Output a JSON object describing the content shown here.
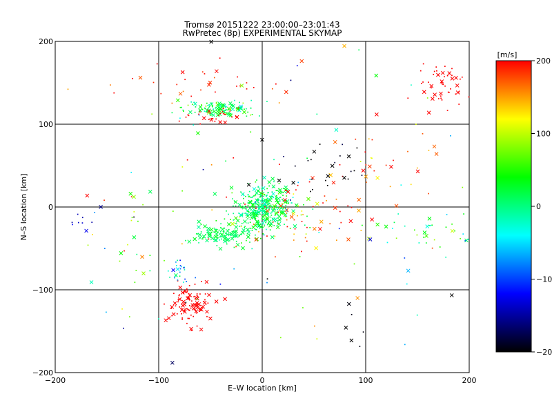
{
  "chart_data": {
    "type": "scatter",
    "title_line1": "Tromsø 20151222 23:00:00–23:01:43",
    "title_line2": "RwPretec (8p) EXPERIMENTAL SKYMAP",
    "xlabel": "E–W location [km]",
    "ylabel": "N–S location [km]",
    "xlim": [
      -200,
      200
    ],
    "ylim": [
      -200,
      200
    ],
    "xticks": [
      -200,
      -100,
      0,
      100,
      200
    ],
    "yticks": [
      -200,
      -100,
      0,
      100,
      200
    ],
    "grid": true,
    "colorbar": {
      "label": "[m/s]",
      "range": [
        -200,
        200
      ],
      "ticks": [
        200,
        100,
        0,
        -100,
        -200
      ],
      "colors": [
        "#ff0000",
        "#ffff00",
        "#00ff00",
        "#00ffff",
        "#0000ff",
        "#000000"
      ]
    },
    "clusters": [
      {
        "center": [
          3,
          2
        ],
        "spread": [
          14,
          12
        ],
        "count": 320,
        "velocity": [
          10,
          25
        ]
      },
      {
        "center": [
          -40,
          -33
        ],
        "spread": [
          16,
          6
        ],
        "count": 110,
        "velocity": [
          15,
          10
        ]
      },
      {
        "center": [
          -8,
          -18
        ],
        "spread": [
          12,
          10
        ],
        "count": 80,
        "velocity": [
          20,
          20
        ]
      },
      {
        "center": [
          -40,
          118
        ],
        "spread": [
          18,
          5
        ],
        "count": 130,
        "velocity": [
          20,
          35
        ]
      },
      {
        "center": [
          -45,
          110
        ],
        "spread": [
          12,
          6
        ],
        "count": 30,
        "velocity": [
          200,
          0
        ]
      },
      {
        "center": [
          -70,
          -118
        ],
        "spread": [
          10,
          12
        ],
        "count": 110,
        "velocity": [
          200,
          0
        ]
      },
      {
        "center": [
          178,
          148
        ],
        "spread": [
          14,
          14
        ],
        "count": 55,
        "velocity": [
          200,
          0
        ]
      },
      {
        "center": [
          30,
          -20
        ],
        "spread": [
          25,
          20
        ],
        "count": 70,
        "velocity": [
          150,
          60
        ]
      },
      {
        "center": [
          -50,
          150
        ],
        "spread": [
          40,
          15
        ],
        "count": 30,
        "velocity": [
          190,
          20
        ]
      },
      {
        "center": [
          115,
          45
        ],
        "spread": [
          25,
          25
        ],
        "count": 35,
        "velocity": [
          180,
          30
        ]
      },
      {
        "center": [
          170,
          -30
        ],
        "spread": [
          25,
          12
        ],
        "count": 40,
        "velocity": [
          40,
          50
        ]
      },
      {
        "center": [
          60,
          40
        ],
        "spread": [
          20,
          15
        ],
        "count": 25,
        "velocity": [
          -200,
          20
        ]
      },
      {
        "center": [
          -80,
          -78
        ],
        "spread": [
          6,
          8
        ],
        "count": 25,
        "velocity": [
          -60,
          50
        ]
      },
      {
        "center": [
          -175,
          -10
        ],
        "spread": [
          8,
          10
        ],
        "count": 10,
        "velocity": [
          -130,
          20
        ]
      },
      {
        "center": [
          -120,
          -40
        ],
        "spread": [
          20,
          40
        ],
        "count": 22,
        "velocity": [
          60,
          40
        ]
      },
      {
        "center": [
          85,
          -130
        ],
        "spread": [
          8,
          20
        ],
        "count": 6,
        "velocity": [
          -200,
          5
        ]
      },
      {
        "center": [
          0,
          0
        ],
        "spread": [
          110,
          110
        ],
        "count": 120,
        "velocity": [
          40,
          140
        ]
      }
    ]
  }
}
